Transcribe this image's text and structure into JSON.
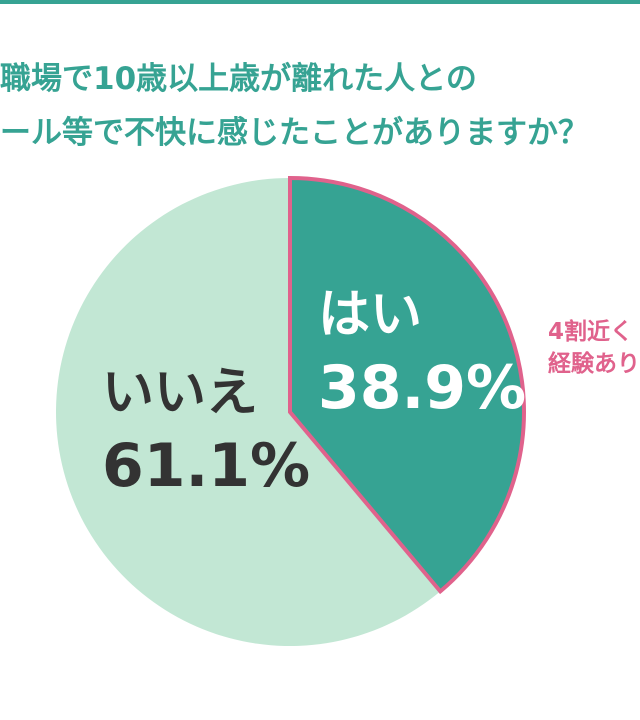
{
  "title_lines": [
    "職場で10歳以上歳が離れた人との",
    "ール等で不快に感じたことがありますか？"
  ],
  "annotation_lines": [
    "4割近く",
    "経験あり"
  ],
  "colors": {
    "accent": "#36a393",
    "yes_fill": "#36a393",
    "no_fill": "#c2e7d4",
    "highlight": "#e0628c",
    "dark_text": "#333333"
  },
  "chart_data": {
    "type": "pie",
    "title": "職場で10歳以上歳が離れた人とのール等で不快に感じたことがありますか？",
    "slices": [
      {
        "label": "はい",
        "value": 38.9,
        "value_label": "38.9%"
      },
      {
        "label": "いいえ",
        "value": 61.1,
        "value_label": "61.1%"
      }
    ],
    "start_angle": "12 o'clock",
    "direction": "clockwise",
    "highlighted_slice": "はい"
  }
}
